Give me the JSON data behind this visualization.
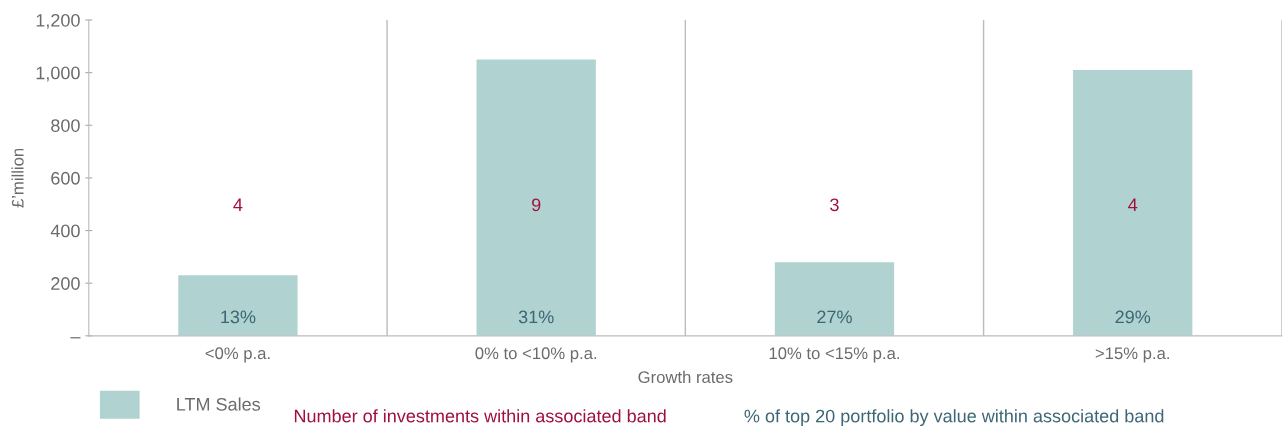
{
  "chart_data": {
    "type": "bar",
    "categories": [
      "<0% p.a.",
      "0% to <10% p.a.",
      "10% to <15% p.a.",
      ">15% p.a."
    ],
    "series": [
      {
        "name": "LTM Sales",
        "color": "#b0d3d1",
        "values": [
          230,
          1050,
          280,
          1010
        ]
      }
    ],
    "xlabel": "Growth rates",
    "ylabel": "£’million",
    "ylim": [
      0,
      1200
    ],
    "yticks": [
      {
        "value": 0,
        "label": "–"
      },
      200,
      400,
      600,
      800,
      {
        "value": 1000,
        "label": "1,000"
      },
      {
        "value": 1200,
        "label": "1,200"
      }
    ],
    "grid": "x",
    "legend": "bottom left",
    "annotations": [
      "4",
      "9",
      "3",
      "4",
      "13%",
      "31%",
      "27%",
      "29%",
      "Number of investments within associated band",
      "% of top 20 portfolio by value within associated band"
    ]
  }
}
